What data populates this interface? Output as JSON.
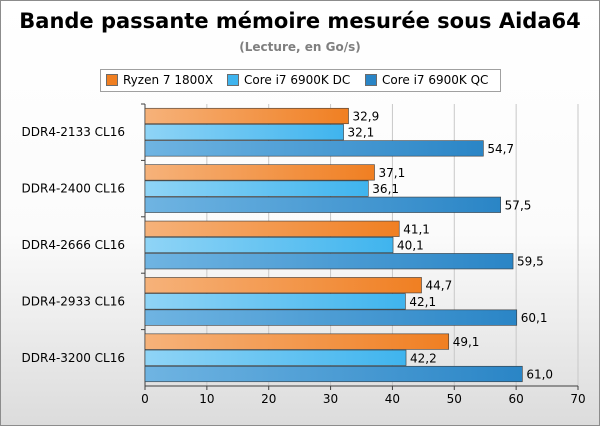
{
  "chart_data": {
    "type": "bar",
    "orientation": "horizontal",
    "title": "Bande passante mémoire mesurée sous Aida64",
    "subtitle": "(Lecture, en Go/s)",
    "categories": [
      "DDR4-2133 CL16",
      "DDR4-2400 CL16",
      "DDR4-2666 CL16",
      "DDR4-2933 CL16",
      "DDR4-3200 CL16"
    ],
    "series": [
      {
        "name": "Ryzen 7 1800X",
        "color": "#f07f22",
        "values": [
          32.9,
          37.1,
          41.1,
          44.7,
          49.1
        ],
        "labels": [
          "32,9",
          "37,1",
          "41,1",
          "44,7",
          "49,1"
        ]
      },
      {
        "name": "Core i7 6900K DC",
        "color": "#3fb4ee",
        "values": [
          32.1,
          36.1,
          40.1,
          42.1,
          42.2
        ],
        "labels": [
          "32,1",
          "36,1",
          "40,1",
          "42,1",
          "42,2"
        ]
      },
      {
        "name": "Core i7 6900K QC",
        "color": "#2a85c6",
        "values": [
          54.7,
          57.5,
          59.5,
          60.1,
          61.0
        ],
        "labels": [
          "54,7",
          "57,5",
          "59,5",
          "60,1",
          "61,0"
        ]
      }
    ],
    "xlim": [
      0,
      70
    ],
    "xticks": [
      "0",
      "10",
      "20",
      "30",
      "40",
      "50",
      "60",
      "70"
    ],
    "grid": true,
    "legend_position": "top"
  }
}
